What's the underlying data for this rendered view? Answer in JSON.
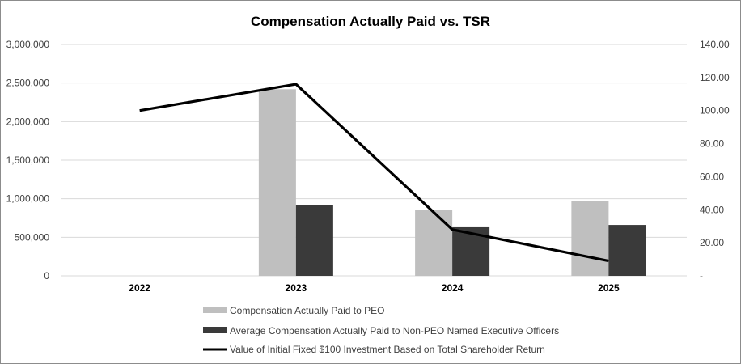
{
  "chart_data": {
    "type": "bar",
    "title": "Compensation Actually Paid vs. TSR",
    "categories": [
      "2022",
      "2023",
      "2024",
      "2025"
    ],
    "y_left": {
      "min": 0,
      "max": 3000000,
      "step": 500000,
      "tick_labels": [
        "0",
        "500,000",
        "1,000,000",
        "1,500,000",
        "2,000,000",
        "2,500,000",
        "3,000,000"
      ]
    },
    "y_right": {
      "min": 0,
      "max": 140,
      "step": 20,
      "tick_labels": [
        "-",
        "20.00",
        "40.00",
        "60.00",
        "80.00",
        "100.00",
        "120.00",
        "140.00"
      ]
    },
    "grid": true,
    "legend_position": "bottom",
    "series": [
      {
        "name": "Compensation Actually Paid to PEO",
        "kind": "bar",
        "axis": "left",
        "color": "#bfbfbf",
        "values": [
          null,
          2420000,
          850000,
          970000
        ]
      },
      {
        "name": "Average Compensation Actually Paid to Non-PEO Named Executive Officers",
        "kind": "bar",
        "axis": "left",
        "color": "#3a3a3a",
        "values": [
          null,
          920000,
          630000,
          660000
        ]
      },
      {
        "name": "Value of Initial Fixed $100 Investment Based on Total Shareholder Return",
        "kind": "line",
        "axis": "right",
        "color": "#000000",
        "values": [
          100,
          116,
          28,
          9
        ]
      }
    ]
  }
}
